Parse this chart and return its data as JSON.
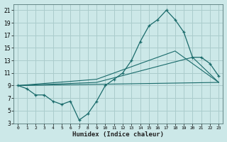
{
  "xlabel": "Humidex (Indice chaleur)",
  "bg_color": "#cce8e8",
  "grid_color": "#aacccc",
  "line_color": "#1a6b6b",
  "xlim": [
    -0.5,
    23.5
  ],
  "ylim": [
    3,
    22
  ],
  "xticks": [
    0,
    1,
    2,
    3,
    4,
    5,
    6,
    7,
    8,
    9,
    10,
    11,
    12,
    13,
    14,
    15,
    16,
    17,
    18,
    19,
    20,
    21,
    22,
    23
  ],
  "yticks": [
    3,
    5,
    7,
    9,
    11,
    13,
    15,
    17,
    19,
    21
  ],
  "series_main": {
    "x": [
      0,
      1,
      2,
      3,
      4,
      5,
      6,
      7,
      8,
      9,
      10,
      11,
      12,
      13,
      14,
      15,
      16,
      17,
      18,
      19,
      20,
      21,
      22,
      23
    ],
    "y": [
      9,
      8.5,
      7.5,
      7.5,
      6.5,
      6.0,
      6.5,
      3.5,
      4.5,
      6.5,
      9.0,
      10.0,
      11.0,
      13.0,
      16.0,
      18.5,
      19.5,
      21.0,
      19.5,
      17.5,
      13.5,
      13.5,
      12.5,
      10.5
    ]
  },
  "series_lines": [
    {
      "x": [
        0,
        23
      ],
      "y": [
        9,
        9.5
      ]
    },
    {
      "x": [
        0,
        9,
        20,
        23
      ],
      "y": [
        9,
        9.5,
        13.5,
        9.5
      ]
    },
    {
      "x": [
        0,
        9,
        18,
        23
      ],
      "y": [
        9,
        10.0,
        14.5,
        9.5
      ]
    }
  ]
}
